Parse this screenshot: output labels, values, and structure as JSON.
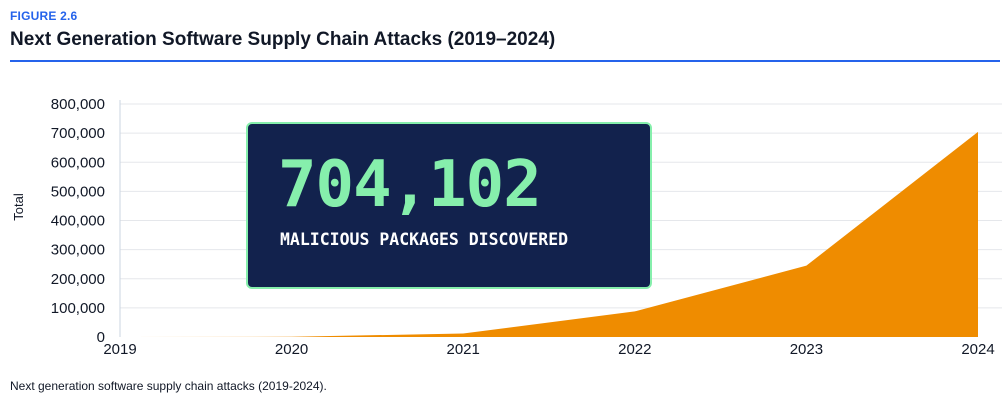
{
  "figure": {
    "label": "FIGURE 2.6",
    "title": "Next Generation Software Supply Chain Attacks (2019–2024)",
    "caption": "Next generation software supply chain attacks (2019-2024)."
  },
  "callout": {
    "value": "704,102",
    "label": "MALICIOUS PACKAGES DISCOVERED",
    "background_color": "#12224d",
    "accent_color": "#86efac"
  },
  "colors": {
    "accent": "#2563eb",
    "area_fill": "#ef8c00",
    "grid": "#e5e7eb"
  },
  "chart_data": {
    "type": "area",
    "title": "",
    "xlabel": "",
    "ylabel": "Total",
    "x": [
      2019,
      2020,
      2021,
      2022,
      2023,
      2024
    ],
    "x_tick_labels": [
      "2019",
      "2020",
      "2021",
      "2022",
      "2023",
      "2024"
    ],
    "y_tick_labels": [
      "0",
      "100,000",
      "200,000",
      "300,000",
      "400,000",
      "500,000",
      "600,000",
      "700,000",
      "800,000"
    ],
    "ylim": [
      0,
      800000
    ],
    "grid": true,
    "legend": "none",
    "series": [
      {
        "values": [
          0,
          700,
          12000,
          88000,
          245000,
          704102
        ]
      }
    ]
  }
}
